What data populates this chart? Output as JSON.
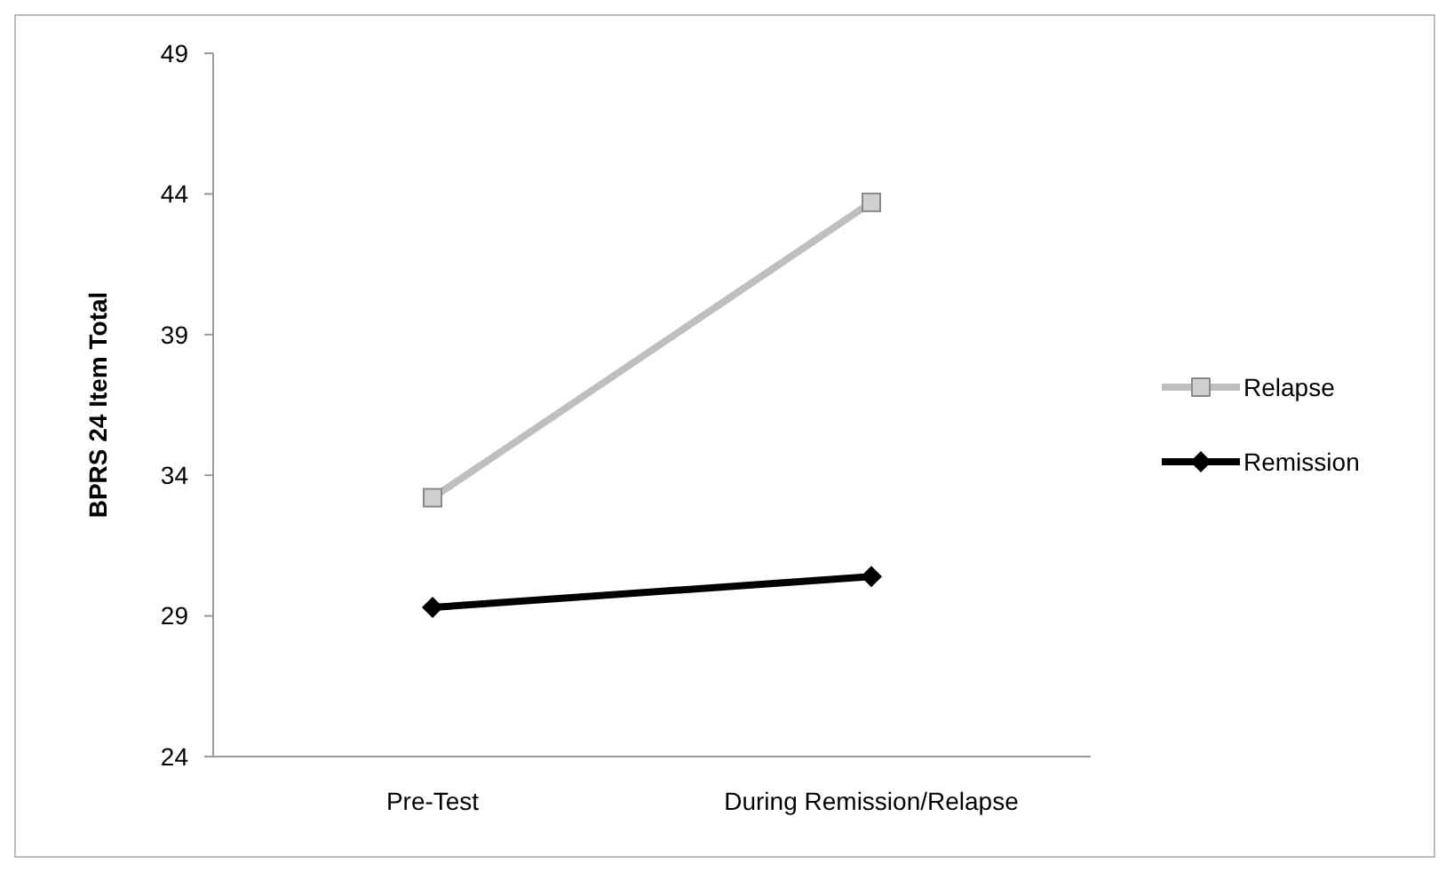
{
  "chart_data": {
    "type": "line",
    "ylabel": "BPRS 24 Item Total",
    "categories": [
      "Pre-Test",
      "During Remission/Relapse"
    ],
    "series": [
      {
        "name": "Relapse",
        "color": "#bfbfbf",
        "marker": "square",
        "values": [
          33.2,
          43.7
        ]
      },
      {
        "name": "Remission",
        "color": "#000000",
        "marker": "diamond",
        "values": [
          29.3,
          30.4
        ]
      }
    ],
    "ylim": [
      24,
      49
    ],
    "yticks": [
      24,
      29,
      34,
      39,
      44,
      49
    ],
    "grid": false,
    "legend": "right"
  }
}
